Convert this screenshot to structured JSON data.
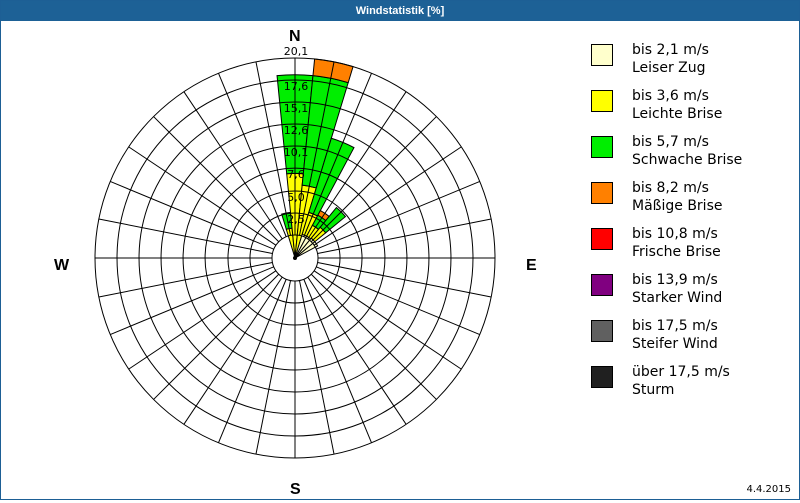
{
  "window": {
    "title": "Windstatistik [%]"
  },
  "compass": {
    "north": "N",
    "east": "E",
    "south": "S",
    "west": "W"
  },
  "date": "4.4.2015",
  "legend": [
    {
      "range": "bis 2,1 m/s",
      "label": "Leiser Zug",
      "color": "#ffffcc"
    },
    {
      "range": "bis 3,6 m/s",
      "label": "Leichte Brise",
      "color": "#ffff00"
    },
    {
      "range": "bis 5,7 m/s",
      "label": "Schwache Brise",
      "color": "#00ee00"
    },
    {
      "range": "bis 8,2 m/s",
      "label": "Mäßige Brise",
      "color": "#ff8000"
    },
    {
      "range": "bis 10,8 m/s",
      "label": "Frische Brise",
      "color": "#ff0000"
    },
    {
      "range": "bis 13,9 m/s",
      "label": "Starker Wind",
      "color": "#800080"
    },
    {
      "range": "bis 17,5 m/s",
      "label": "Steifer Wind",
      "color": "#606060"
    },
    {
      "range": "über 17,5 m/s",
      "label": "Sturm",
      "color": "#202020"
    }
  ],
  "chart_data": {
    "type": "wind-rose",
    "title": "Windstatistik [%]",
    "unit": "%",
    "directions_count": 32,
    "sector_width_deg": 11.25,
    "radial_max": 20.1,
    "radial_ticks": [
      "2,5",
      "5,0",
      "7,6",
      "10,1",
      "12,6",
      "15,1",
      "17,6",
      "20,1"
    ],
    "radial_tick_values": [
      2.5,
      5.0,
      7.6,
      10.1,
      12.6,
      15.1,
      17.6,
      20.1
    ],
    "compass_labels": [
      "N",
      "E",
      "S",
      "W"
    ],
    "categories": [
      "Leiser Zug",
      "Leichte Brise",
      "Schwache Brise",
      "Mäßige Brise",
      "Frische Brise",
      "Starker Wind",
      "Steifer Wind",
      "Sturm"
    ],
    "sectors": [
      {
        "direction_deg": 348.75,
        "values": [
          0.0,
          0.8,
          1.8,
          0,
          0,
          0,
          0,
          0
        ]
      },
      {
        "direction_deg": 0,
        "values": [
          0.0,
          7.0,
          11.2,
          0,
          0,
          0,
          0,
          0
        ]
      },
      {
        "direction_deg": 11.25,
        "values": [
          0.0,
          5.7,
          12.5,
          1.9,
          0,
          0,
          0,
          0
        ]
      },
      {
        "direction_deg": 22.5,
        "values": [
          0.2,
          2.6,
          8.8,
          0,
          0,
          0,
          0,
          0
        ]
      },
      {
        "direction_deg": 33.75,
        "values": [
          0.2,
          1.4,
          1.3,
          0.6,
          0,
          0,
          0,
          0
        ]
      },
      {
        "direction_deg": 45,
        "values": [
          0.3,
          1.6,
          2.9,
          0,
          0,
          0,
          0,
          0
        ]
      },
      {
        "direction_deg": 56.25,
        "values": [
          0.3,
          0,
          0,
          0,
          0,
          0,
          0,
          0
        ]
      }
    ],
    "legend_position": "right"
  }
}
